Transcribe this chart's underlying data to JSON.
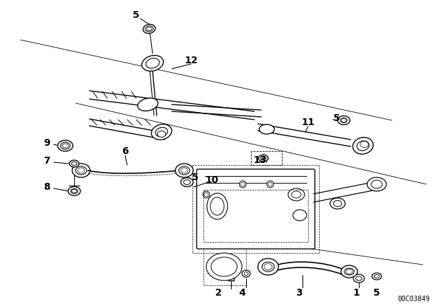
{
  "bg_color": "#ffffff",
  "line_color": "#000000",
  "diagram_code": "00C03849",
  "parts": [
    [
      "5",
      198,
      22
    ],
    [
      "12",
      278,
      88
    ],
    [
      "9",
      68,
      208
    ],
    [
      "6",
      182,
      220
    ],
    [
      "5",
      284,
      258
    ],
    [
      "10",
      308,
      262
    ],
    [
      "7",
      68,
      234
    ],
    [
      "8",
      68,
      272
    ],
    [
      "11",
      448,
      178
    ],
    [
      "5",
      490,
      172
    ],
    [
      "13",
      378,
      233
    ],
    [
      "2",
      318,
      412
    ],
    [
      "4",
      352,
      412
    ],
    [
      "3",
      435,
      412
    ],
    [
      "1",
      518,
      412
    ],
    [
      "5",
      548,
      412
    ]
  ]
}
